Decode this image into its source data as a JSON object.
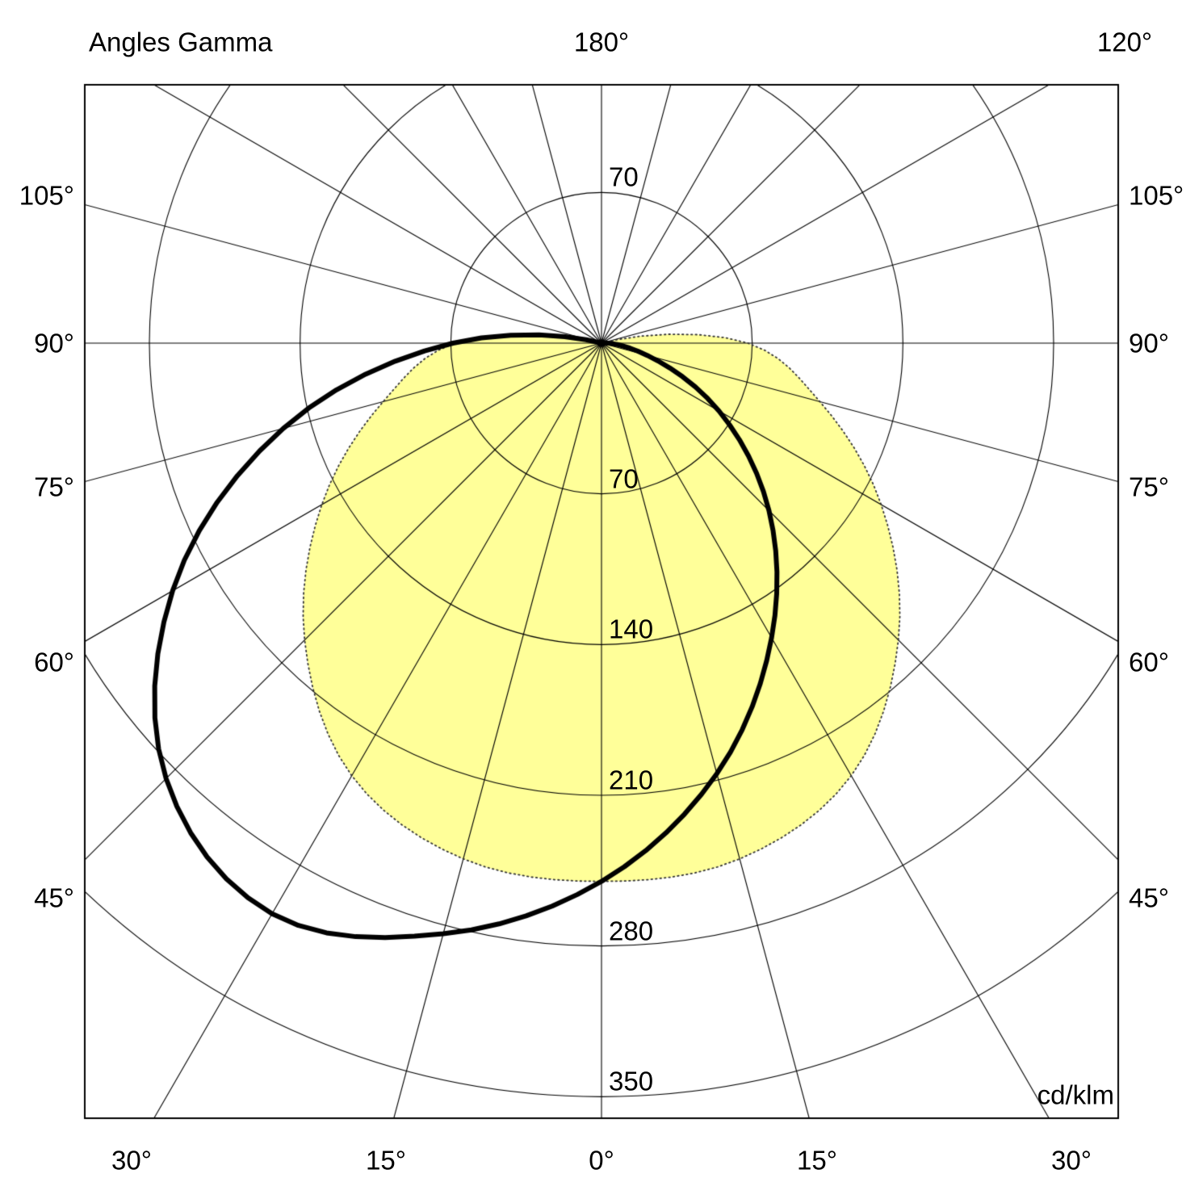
{
  "title": "Angles Gamma",
  "labels": {
    "top_left_title": "Angles Gamma",
    "top_center": "180°",
    "top_right": "120°",
    "left": [
      "105°",
      "90°",
      "75°",
      "60°",
      "45°"
    ],
    "right": [
      "105°",
      "90°",
      "75°",
      "60°",
      "45°"
    ],
    "bottom": [
      "30°",
      "15°",
      "0°",
      "15°",
      "30°"
    ],
    "upper_tick": "70",
    "radial_ticks": [
      "70",
      "140",
      "210",
      "280",
      "350"
    ],
    "unit": "cd/klm"
  },
  "chart_data": {
    "type": "polar",
    "title": "Angles Gamma",
    "unit": "cd/klm",
    "angular_axis": {
      "zero_direction": "down",
      "step_deg": 15,
      "shown_angle_labels_deg": [
        0,
        15,
        30,
        45,
        60,
        75,
        90,
        105,
        120,
        180
      ]
    },
    "radial_axis": {
      "ticks": [
        70,
        140,
        210,
        280,
        350
      ],
      "max": 350,
      "unit": "cd/klm"
    },
    "gamma_angles_deg": [
      0,
      15,
      30,
      45,
      60,
      75,
      90,
      105
    ],
    "series": [
      {
        "name": "curve-solid",
        "style": "solid",
        "color": "#000000",
        "left_values_cd_per_klm": [
          250,
          284,
          306,
          286,
          230,
          153,
          69,
          0
        ],
        "right_values_cd_per_klm": [
          250,
          207,
          158,
          110,
          63,
          22,
          3,
          0
        ]
      },
      {
        "name": "curve-dotted-filled",
        "style": "dotted",
        "color": "#333333",
        "fill": "#ffff99",
        "left_values_cd_per_klm": [
          250,
          248,
          232,
          195,
          150,
          105,
          68,
          0
        ],
        "right_values_cd_per_klm": [
          250,
          248,
          232,
          195,
          150,
          105,
          68,
          0
        ]
      }
    ],
    "grid": {
      "angular_step_deg": 15,
      "radial_ticks": [
        70,
        140,
        210,
        280,
        350
      ]
    }
  },
  "colors": {
    "background": "#ffffff",
    "grid": "#000000",
    "frame": "#000000",
    "fill_yellow": "#ffff99",
    "curve": "#000000"
  }
}
